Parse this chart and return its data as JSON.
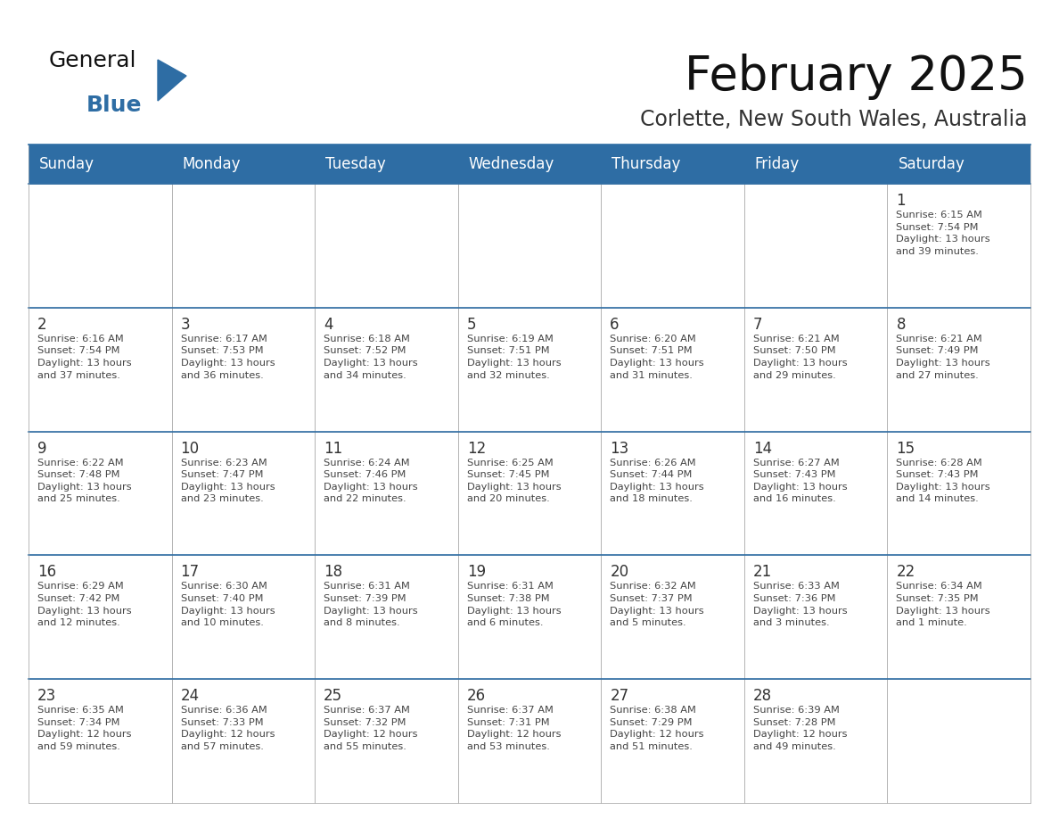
{
  "title": "February 2025",
  "subtitle": "Corlette, New South Wales, Australia",
  "header_bg": "#2E6DA4",
  "header_text_color": "#FFFFFF",
  "cell_bg": "#FFFFFF",
  "cell_bg_last": "#F5F5F5",
  "day_num_color": "#333333",
  "text_color": "#444444",
  "border_color": "#AAAAAA",
  "week_divider_color": "#2E6DA4",
  "days_of_week": [
    "Sunday",
    "Monday",
    "Tuesday",
    "Wednesday",
    "Thursday",
    "Friday",
    "Saturday"
  ],
  "weeks": [
    [
      {
        "day": null,
        "info": null
      },
      {
        "day": null,
        "info": null
      },
      {
        "day": null,
        "info": null
      },
      {
        "day": null,
        "info": null
      },
      {
        "day": null,
        "info": null
      },
      {
        "day": null,
        "info": null
      },
      {
        "day": 1,
        "info": "Sunrise: 6:15 AM\nSunset: 7:54 PM\nDaylight: 13 hours\nand 39 minutes."
      }
    ],
    [
      {
        "day": 2,
        "info": "Sunrise: 6:16 AM\nSunset: 7:54 PM\nDaylight: 13 hours\nand 37 minutes."
      },
      {
        "day": 3,
        "info": "Sunrise: 6:17 AM\nSunset: 7:53 PM\nDaylight: 13 hours\nand 36 minutes."
      },
      {
        "day": 4,
        "info": "Sunrise: 6:18 AM\nSunset: 7:52 PM\nDaylight: 13 hours\nand 34 minutes."
      },
      {
        "day": 5,
        "info": "Sunrise: 6:19 AM\nSunset: 7:51 PM\nDaylight: 13 hours\nand 32 minutes."
      },
      {
        "day": 6,
        "info": "Sunrise: 6:20 AM\nSunset: 7:51 PM\nDaylight: 13 hours\nand 31 minutes."
      },
      {
        "day": 7,
        "info": "Sunrise: 6:21 AM\nSunset: 7:50 PM\nDaylight: 13 hours\nand 29 minutes."
      },
      {
        "day": 8,
        "info": "Sunrise: 6:21 AM\nSunset: 7:49 PM\nDaylight: 13 hours\nand 27 minutes."
      }
    ],
    [
      {
        "day": 9,
        "info": "Sunrise: 6:22 AM\nSunset: 7:48 PM\nDaylight: 13 hours\nand 25 minutes."
      },
      {
        "day": 10,
        "info": "Sunrise: 6:23 AM\nSunset: 7:47 PM\nDaylight: 13 hours\nand 23 minutes."
      },
      {
        "day": 11,
        "info": "Sunrise: 6:24 AM\nSunset: 7:46 PM\nDaylight: 13 hours\nand 22 minutes."
      },
      {
        "day": 12,
        "info": "Sunrise: 6:25 AM\nSunset: 7:45 PM\nDaylight: 13 hours\nand 20 minutes."
      },
      {
        "day": 13,
        "info": "Sunrise: 6:26 AM\nSunset: 7:44 PM\nDaylight: 13 hours\nand 18 minutes."
      },
      {
        "day": 14,
        "info": "Sunrise: 6:27 AM\nSunset: 7:43 PM\nDaylight: 13 hours\nand 16 minutes."
      },
      {
        "day": 15,
        "info": "Sunrise: 6:28 AM\nSunset: 7:43 PM\nDaylight: 13 hours\nand 14 minutes."
      }
    ],
    [
      {
        "day": 16,
        "info": "Sunrise: 6:29 AM\nSunset: 7:42 PM\nDaylight: 13 hours\nand 12 minutes."
      },
      {
        "day": 17,
        "info": "Sunrise: 6:30 AM\nSunset: 7:40 PM\nDaylight: 13 hours\nand 10 minutes."
      },
      {
        "day": 18,
        "info": "Sunrise: 6:31 AM\nSunset: 7:39 PM\nDaylight: 13 hours\nand 8 minutes."
      },
      {
        "day": 19,
        "info": "Sunrise: 6:31 AM\nSunset: 7:38 PM\nDaylight: 13 hours\nand 6 minutes."
      },
      {
        "day": 20,
        "info": "Sunrise: 6:32 AM\nSunset: 7:37 PM\nDaylight: 13 hours\nand 5 minutes."
      },
      {
        "day": 21,
        "info": "Sunrise: 6:33 AM\nSunset: 7:36 PM\nDaylight: 13 hours\nand 3 minutes."
      },
      {
        "day": 22,
        "info": "Sunrise: 6:34 AM\nSunset: 7:35 PM\nDaylight: 13 hours\nand 1 minute."
      }
    ],
    [
      {
        "day": 23,
        "info": "Sunrise: 6:35 AM\nSunset: 7:34 PM\nDaylight: 12 hours\nand 59 minutes."
      },
      {
        "day": 24,
        "info": "Sunrise: 6:36 AM\nSunset: 7:33 PM\nDaylight: 12 hours\nand 57 minutes."
      },
      {
        "day": 25,
        "info": "Sunrise: 6:37 AM\nSunset: 7:32 PM\nDaylight: 12 hours\nand 55 minutes."
      },
      {
        "day": 26,
        "info": "Sunrise: 6:37 AM\nSunset: 7:31 PM\nDaylight: 12 hours\nand 53 minutes."
      },
      {
        "day": 27,
        "info": "Sunrise: 6:38 AM\nSunset: 7:29 PM\nDaylight: 12 hours\nand 51 minutes."
      },
      {
        "day": 28,
        "info": "Sunrise: 6:39 AM\nSunset: 7:28 PM\nDaylight: 12 hours\nand 49 minutes."
      },
      {
        "day": null,
        "info": null
      }
    ]
  ],
  "logo_color_general": "#111111",
  "logo_color_blue": "#2E6DA4",
  "logo_triangle_color": "#2E6DA4",
  "title_fontsize": 38,
  "subtitle_fontsize": 17,
  "header_fontsize": 12,
  "day_num_fontsize": 12,
  "cell_text_fontsize": 8.2
}
